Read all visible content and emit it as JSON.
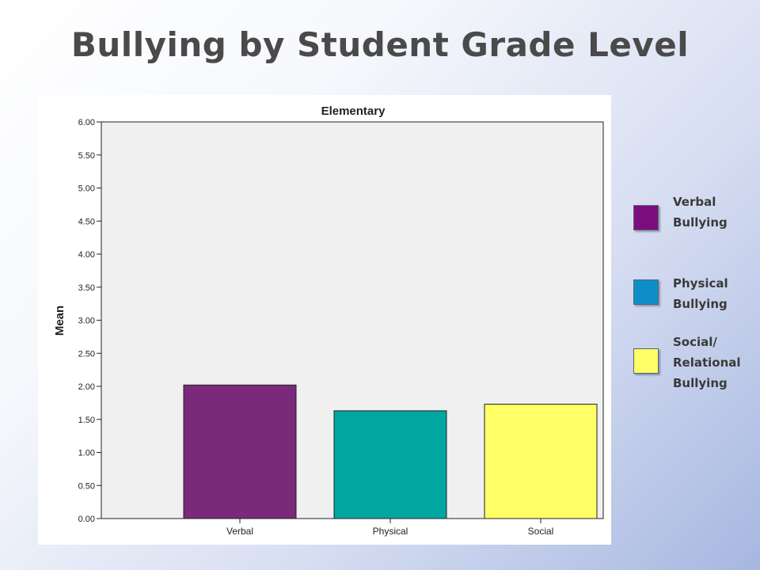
{
  "slide": {
    "title": "Bullying by Student Grade Level"
  },
  "legend": [
    {
      "label": "Verbal\nBullying",
      "color": "#7b0e7b"
    },
    {
      "label": "Physical\nBullying",
      "color": "#0e8ec9"
    },
    {
      "label": "Social/\nRelational\nBullying",
      "color": "#ffff66"
    }
  ],
  "chart_data": {
    "type": "bar",
    "title": "Elementary",
    "xlabel": "",
    "ylabel": "Mean",
    "categories": [
      "Verbal",
      "Physical",
      "Social"
    ],
    "values": [
      2.02,
      1.63,
      1.73
    ],
    "colors": [
      "#7b2a7b",
      "#00a6a0",
      "#ffff66"
    ],
    "ylim": [
      0,
      6
    ],
    "yticks": [
      "0.00",
      "0.50",
      "1.00",
      "1.50",
      "2.00",
      "2.50",
      "3.00",
      "3.50",
      "4.00",
      "4.50",
      "5.00",
      "5.50",
      "6.00"
    ],
    "grid": false,
    "plot_background": "#f0f0f0"
  }
}
